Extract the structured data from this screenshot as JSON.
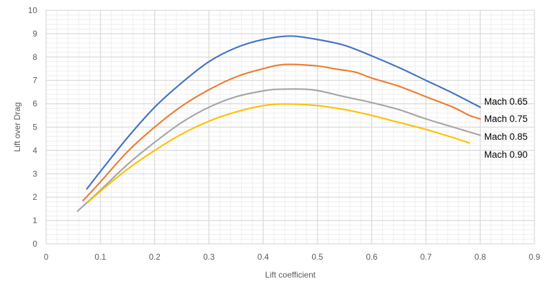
{
  "chart_data": {
    "type": "line",
    "xlabel": "Lift coefficient",
    "ylabel": "Lift over Drag",
    "xlim": [
      0,
      0.9
    ],
    "ylim": [
      0,
      10
    ],
    "x_major_step": 0.1,
    "x_minor_step": 0.02,
    "y_major_step": 1,
    "y_minor_step": 0.2,
    "x_tick_labels": [
      "0",
      "0.1",
      "0.2",
      "0.3",
      "0.4",
      "0.5",
      "0.6",
      "0.7",
      "0.8",
      "0.9"
    ],
    "y_tick_labels": [
      "0",
      "1",
      "2",
      "3",
      "4",
      "5",
      "6",
      "7",
      "8",
      "9",
      "10"
    ],
    "grid": true,
    "legend": "inline-right",
    "series": [
      {
        "name": "Mach 0.65",
        "color": "#4472C4",
        "x": [
          0.075,
          0.1,
          0.15,
          0.2,
          0.25,
          0.3,
          0.35,
          0.4,
          0.45,
          0.5,
          0.55,
          0.6,
          0.65,
          0.7,
          0.75,
          0.8
        ],
        "y": [
          2.35,
          3.1,
          4.55,
          5.85,
          6.9,
          7.8,
          8.4,
          8.75,
          8.9,
          8.75,
          8.5,
          8.05,
          7.55,
          7.0,
          6.45,
          5.85
        ]
      },
      {
        "name": "Mach 0.75",
        "color": "#ED7D31",
        "x": [
          0.068,
          0.1,
          0.15,
          0.2,
          0.25,
          0.3,
          0.35,
          0.4,
          0.44,
          0.5,
          0.53,
          0.57,
          0.6,
          0.65,
          0.7,
          0.75,
          0.78,
          0.8
        ],
        "y": [
          1.85,
          2.65,
          3.95,
          5.0,
          5.9,
          6.6,
          7.15,
          7.5,
          7.68,
          7.62,
          7.5,
          7.35,
          7.1,
          6.75,
          6.3,
          5.85,
          5.5,
          5.35
        ]
      },
      {
        "name": "Mach 0.85",
        "color": "#A5A5A5",
        "x": [
          0.058,
          0.1,
          0.15,
          0.2,
          0.25,
          0.3,
          0.35,
          0.4,
          0.43,
          0.49,
          0.55,
          0.6,
          0.65,
          0.7,
          0.75,
          0.8
        ],
        "y": [
          1.4,
          2.3,
          3.4,
          4.35,
          5.2,
          5.85,
          6.3,
          6.55,
          6.62,
          6.6,
          6.3,
          6.05,
          5.75,
          5.35,
          5.0,
          4.65
        ]
      },
      {
        "name": "Mach 0.90",
        "color": "#FFC000",
        "x": [
          0.077,
          0.1,
          0.15,
          0.2,
          0.25,
          0.3,
          0.35,
          0.4,
          0.44,
          0.5,
          0.55,
          0.6,
          0.65,
          0.7,
          0.75,
          0.78
        ],
        "y": [
          1.78,
          2.25,
          3.2,
          4.0,
          4.7,
          5.25,
          5.65,
          5.92,
          5.99,
          5.92,
          5.75,
          5.5,
          5.2,
          4.9,
          4.55,
          4.32
        ]
      }
    ]
  }
}
